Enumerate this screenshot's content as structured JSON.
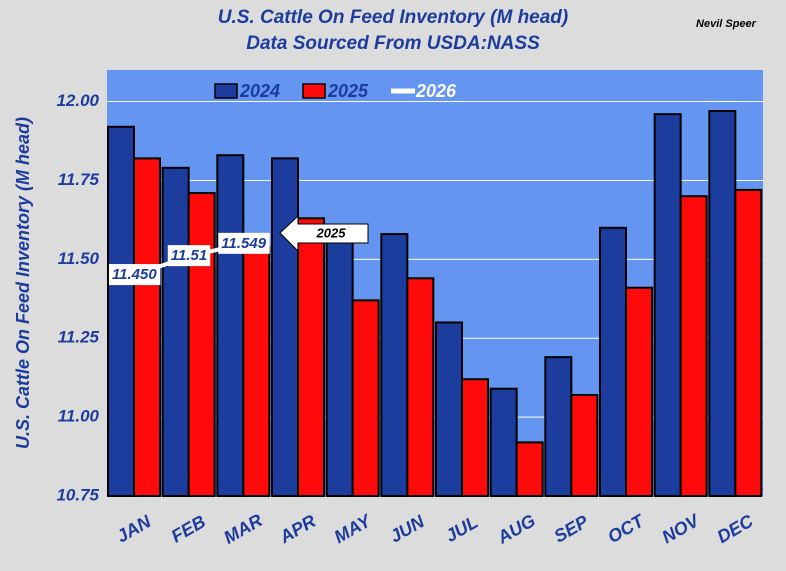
{
  "chart_data": {
    "type": "bar",
    "title": "U.S. Cattle On Feed Inventory (M head)",
    "subtitle": "Data Sourced From USDA:NASS",
    "author": "Nevil Speer",
    "y_label": "U.S. Cattle On Feed Inventory (M head)",
    "categories": [
      "JAN",
      "FEB",
      "MAR",
      "APR",
      "MAY",
      "JUN",
      "JUL",
      "AUG",
      "SEP",
      "OCT",
      "NOV",
      "DEC"
    ],
    "series": [
      {
        "name": "2024",
        "color": "#1c3c9e",
        "values": [
          11.92,
          11.79,
          11.83,
          11.82,
          11.59,
          11.58,
          11.3,
          11.09,
          11.19,
          11.6,
          11.96,
          11.97
        ]
      },
      {
        "name": "2025",
        "color": "#ff0a0a",
        "values": [
          11.82,
          11.71,
          11.54,
          11.63,
          11.37,
          11.44,
          11.12,
          10.92,
          11.07,
          11.41,
          11.7,
          11.72
        ]
      },
      {
        "name": "2026",
        "color": "#ffffff",
        "type": "line",
        "values": [
          11.45,
          11.51,
          11.549,
          null,
          null,
          null,
          null,
          null,
          null,
          null,
          null,
          null
        ],
        "value_labels": [
          "11.450",
          "11.51",
          "11.549",
          null,
          null,
          null,
          null,
          null,
          null,
          null,
          null,
          null
        ]
      }
    ],
    "annotation": "2025",
    "ylim": [
      10.75,
      12.1
    ],
    "yticks": [
      {
        "value": 10.75,
        "label": "10.75"
      },
      {
        "value": 11,
        "label": "11.00"
      },
      {
        "value": 11.25,
        "label": "11.25"
      },
      {
        "value": 11.5,
        "label": "11.50"
      },
      {
        "value": 11.75,
        "label": "11.75"
      },
      {
        "value": 12,
        "label": "12.00"
      }
    ],
    "grid": true,
    "legend": "top"
  }
}
